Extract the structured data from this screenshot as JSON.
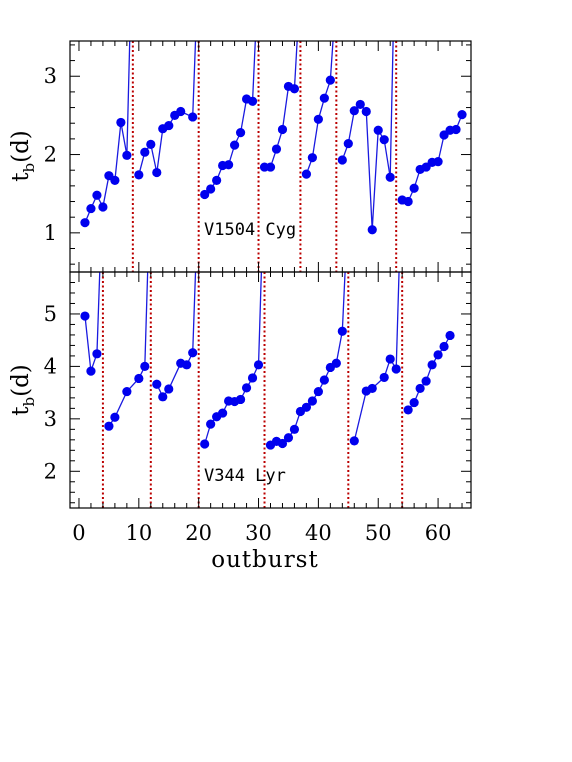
{
  "chart_data": [
    {
      "type": "line",
      "panel": "top",
      "annotation": "V1504 Cyg",
      "ylabel": {
        "main": "t",
        "sub": "b",
        "suffix": "(d)"
      },
      "xlim": [
        -1.5,
        65.5
      ],
      "ylim": [
        0.5,
        3.45
      ],
      "yticks_major": [
        1,
        2,
        3
      ],
      "yticks_minor_step": 0.2,
      "xticks_major": [
        0,
        10,
        20,
        30,
        40,
        50,
        60
      ],
      "xticks_minor_step": 2,
      "x_ticklabels_shown": false,
      "marker_color": "#0000ee",
      "line_color": "#1a1ae0",
      "divider_color": "#bb0000",
      "dividers": [
        9,
        20,
        30,
        37,
        43,
        53
      ],
      "segments": [
        {
          "x": [
            1,
            2,
            3,
            4,
            5,
            6,
            7,
            8
          ],
          "y": [
            1.13,
            1.31,
            1.48,
            1.33,
            1.73,
            1.67,
            2.41,
            1.99
          ],
          "rise_x": 8.5
        },
        {
          "x": [
            10,
            11,
            12,
            13,
            14,
            15,
            16,
            17,
            19
          ],
          "y": [
            1.74,
            2.03,
            2.13,
            1.77,
            2.33,
            2.37,
            2.5,
            2.55,
            2.48
          ],
          "rise_x": 19.5
        },
        {
          "x": [
            21,
            22,
            23,
            24,
            25,
            26,
            27,
            28,
            29
          ],
          "y": [
            1.49,
            1.56,
            1.67,
            1.86,
            1.87,
            2.12,
            2.28,
            2.71,
            2.68
          ],
          "rise_x": 29.5
        },
        {
          "x": [
            31,
            32,
            33,
            34,
            35,
            36
          ],
          "y": [
            1.84,
            1.84,
            2.07,
            2.32,
            2.87,
            2.84
          ],
          "rise_x": 36.5
        },
        {
          "x": [
            38,
            39,
            40,
            41,
            42
          ],
          "y": [
            1.75,
            1.96,
            2.45,
            2.72,
            2.95
          ],
          "rise_x": 42.5
        },
        {
          "x": [
            44,
            45,
            46,
            47,
            48,
            49,
            50,
            51,
            52
          ],
          "y": [
            1.93,
            2.14,
            2.56,
            2.64,
            2.55,
            1.04,
            2.31,
            2.19,
            1.71
          ],
          "rise_x": 52.5
        },
        {
          "x": [
            54,
            55,
            56,
            57,
            58,
            59,
            60,
            61,
            62,
            63,
            64
          ],
          "y": [
            1.42,
            1.4,
            1.57,
            1.81,
            1.84,
            1.9,
            1.91,
            2.25,
            2.31,
            2.32,
            2.51
          ]
        }
      ]
    },
    {
      "type": "line",
      "panel": "bottom",
      "annotation": "V344 Lyr",
      "ylabel": {
        "main": "t",
        "sub": "b",
        "suffix": "(d)"
      },
      "xlabel": "outburst",
      "xlim": [
        -1.5,
        65.5
      ],
      "ylim": [
        1.3,
        5.8
      ],
      "yticks_major": [
        2,
        3,
        4,
        5
      ],
      "yticks_minor_step": 0.2,
      "xticks_major": [
        0,
        10,
        20,
        30,
        40,
        50,
        60
      ],
      "xticks_minor_step": 2,
      "xtick_labels": [
        "0",
        "10",
        "20",
        "30",
        "40",
        "50",
        "60"
      ],
      "marker_color": "#0000ee",
      "line_color": "#1a1ae0",
      "divider_color": "#bb0000",
      "dividers": [
        4,
        12,
        20,
        31,
        45,
        54
      ],
      "segments": [
        {
          "x": [
            1,
            2,
            3
          ],
          "y": [
            4.96,
            3.91,
            4.24
          ],
          "rise_x": 3.5
        },
        {
          "x": [
            5,
            6,
            8,
            10,
            11
          ],
          "y": [
            2.86,
            3.03,
            3.52,
            3.77,
            4.0
          ],
          "rise_x": 11.5
        },
        {
          "x": [
            13,
            14,
            15,
            17,
            18,
            19
          ],
          "y": [
            3.66,
            3.42,
            3.57,
            4.06,
            4.03,
            4.26
          ],
          "rise_x": 19.5
        },
        {
          "x": [
            21,
            22,
            23,
            24,
            25,
            26,
            27,
            28,
            29,
            30
          ],
          "y": [
            2.52,
            2.9,
            3.04,
            3.11,
            3.34,
            3.33,
            3.37,
            3.59,
            3.78,
            4.03
          ],
          "rise_x": 30.5
        },
        {
          "x": [
            32,
            33,
            34,
            35,
            36,
            37,
            38,
            39,
            40,
            41,
            42,
            43,
            44
          ],
          "y": [
            2.5,
            2.57,
            2.53,
            2.64,
            2.8,
            3.14,
            3.22,
            3.34,
            3.52,
            3.74,
            3.98,
            4.06,
            4.67
          ],
          "rise_x": 44.5
        },
        {
          "x": [
            46,
            48,
            49,
            51,
            52,
            53
          ],
          "y": [
            2.58,
            3.53,
            3.58,
            3.79,
            4.14,
            3.95
          ],
          "rise_x": 53.5
        },
        {
          "x": [
            55,
            56,
            57,
            58,
            59,
            60,
            61,
            62
          ],
          "y": [
            3.17,
            3.31,
            3.58,
            3.72,
            4.03,
            4.22,
            4.38,
            4.59
          ]
        }
      ]
    }
  ]
}
